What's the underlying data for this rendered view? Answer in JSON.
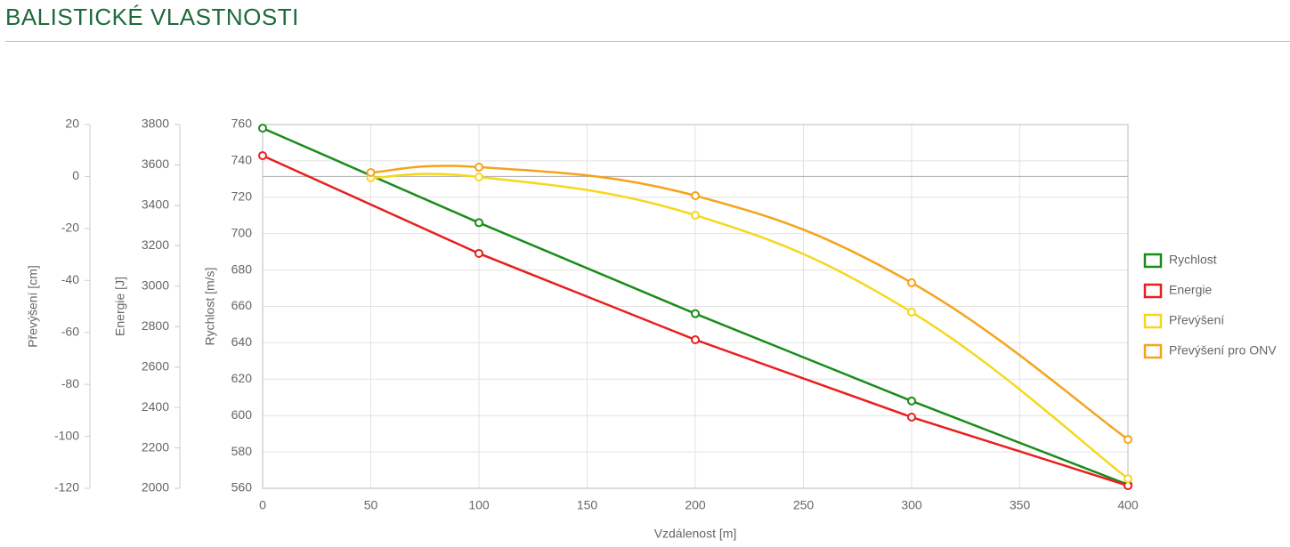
{
  "header": {
    "title": "BALISTICKÉ VLASTNOSTI"
  },
  "chart_data": {
    "type": "line",
    "x_label": "Vzdálenost [m]",
    "xlim": [
      0,
      400
    ],
    "xticks": [
      0,
      50,
      100,
      150,
      200,
      250,
      300,
      350,
      400
    ],
    "y_label": "Rychlost [m/s]",
    "ylim": [
      560,
      760
    ],
    "yticks": [
      560,
      580,
      600,
      620,
      640,
      660,
      680,
      700,
      720,
      740,
      760
    ],
    "y2_label": "Energie [J]",
    "y2lim": [
      2000,
      3800
    ],
    "y2ticks": [
      2000,
      2200,
      2400,
      2600,
      2800,
      3000,
      3200,
      3400,
      3600,
      3800
    ],
    "y3_label": "Převýšení [cm]",
    "y3lim": [
      -120,
      20
    ],
    "y3ticks": [
      -120,
      -100,
      -80,
      -60,
      -40,
      -20,
      0,
      20
    ],
    "grid": true,
    "legend": "right",
    "series": [
      {
        "name": "Rychlost",
        "color": "#1a8c1a",
        "axis": "y",
        "x": [
          0,
          100,
          200,
          300,
          400
        ],
        "values": [
          758,
          706,
          656,
          608,
          562
        ]
      },
      {
        "name": "Energie",
        "color": "#e8201e",
        "axis": "y2",
        "x": [
          0,
          100,
          200,
          300,
          400
        ],
        "values": [
          3646,
          3162,
          2735,
          2352,
          2013
        ]
      },
      {
        "name": "Převýšení",
        "color": "#f5d81c",
        "axis": "y3",
        "x": [
          50,
          100,
          200,
          300,
          400
        ],
        "values": [
          -0.5,
          -0.2,
          -14.9,
          -52.2,
          -116.3
        ]
      },
      {
        "name": "Převýšení pro ONV",
        "color": "#f5a31a",
        "axis": "y3",
        "x": [
          50,
          100,
          200,
          300,
          400
        ],
        "values": [
          1.5,
          3.6,
          -7.4,
          -40.9,
          -101.2
        ]
      }
    ]
  }
}
